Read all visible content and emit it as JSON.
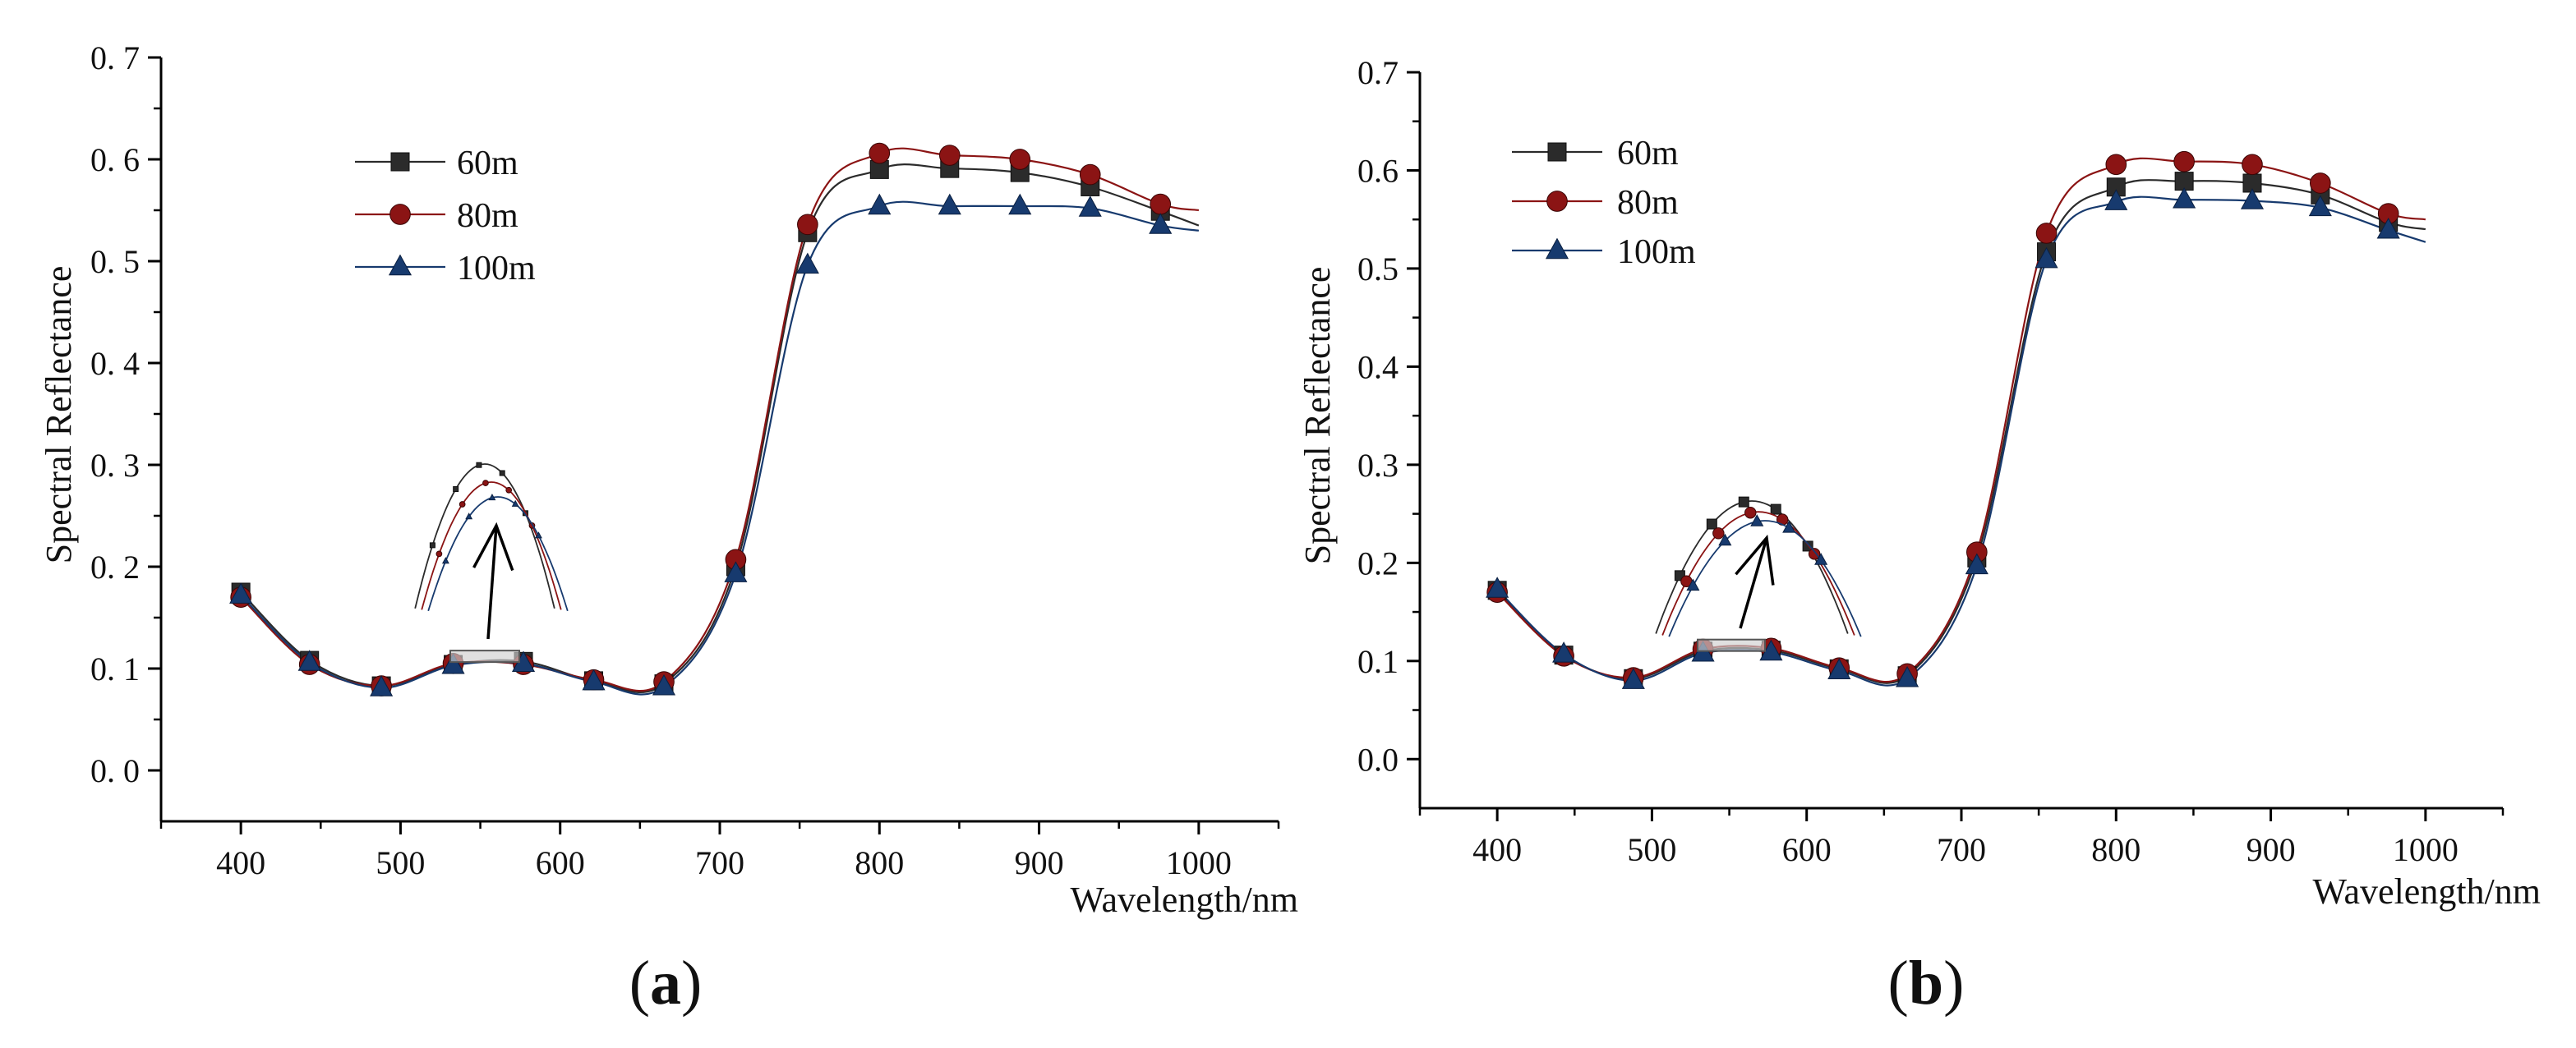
{
  "colors": {
    "series_60m": "#2b2b2b",
    "series_80m": "#8b1414",
    "series_100m": "#173a6e",
    "axis": "#000000",
    "inset_box": "#cfcfcf"
  },
  "chart_data": [
    {
      "type": "line",
      "panel_label": "a",
      "xlabel": "Wavelength/nm",
      "ylabel": "Spectral Reflectance",
      "xlim": [
        350,
        1050
      ],
      "ylim": [
        -0.05,
        0.7
      ],
      "xticks": [
        400,
        500,
        600,
        700,
        800,
        900,
        1000
      ],
      "yticks": [
        0.0,
        0.1,
        0.2,
        0.3,
        0.4,
        0.5,
        0.6,
        0.7
      ],
      "ytick_labels": [
        "0. 0",
        "0. 1",
        "0. 2",
        "0. 3",
        "0. 4",
        "0. 5",
        "0. 6",
        "0. 7"
      ],
      "grid": false,
      "legend_position": "top-left",
      "markers_x": [
        400,
        443,
        488,
        533,
        577,
        621,
        665,
        710,
        755,
        800,
        844,
        888,
        932,
        976
      ],
      "series": [
        {
          "name": "60m",
          "marker": "square",
          "values": [
            0.175,
            0.108,
            0.083,
            0.104,
            0.107,
            0.088,
            0.085,
            0.2,
            0.528,
            0.59,
            0.591,
            0.587,
            0.573,
            0.549
          ],
          "end": 0.535
        },
        {
          "name": "80m",
          "marker": "circle",
          "values": [
            0.17,
            0.104,
            0.083,
            0.105,
            0.104,
            0.089,
            0.087,
            0.207,
            0.536,
            0.606,
            0.604,
            0.6,
            0.585,
            0.556
          ],
          "end": 0.55
        },
        {
          "name": "100m",
          "marker": "triangle",
          "values": [
            0.172,
            0.106,
            0.081,
            0.103,
            0.105,
            0.087,
            0.082,
            0.193,
            0.496,
            0.554,
            0.554,
            0.554,
            0.552,
            0.535
          ],
          "end": 0.53
        }
      ]
    },
    {
      "type": "line",
      "panel_label": "b",
      "xlabel": "Wavelength/nm",
      "ylabel": "Spectral Reflectance",
      "xlim": [
        350,
        1050
      ],
      "ylim": [
        -0.05,
        0.7
      ],
      "xticks": [
        400,
        500,
        600,
        700,
        800,
        900,
        1000
      ],
      "yticks": [
        0.0,
        0.1,
        0.2,
        0.3,
        0.4,
        0.5,
        0.6,
        0.7
      ],
      "ytick_labels": [
        "0.0",
        "0.1",
        "0.2",
        "0.3",
        "0.4",
        "0.5",
        "0.6",
        "0.7"
      ],
      "grid": false,
      "legend_position": "top-left",
      "markers_x": [
        400,
        443,
        488,
        533,
        577,
        621,
        665,
        710,
        755,
        800,
        844,
        888,
        932,
        976
      ],
      "series": [
        {
          "name": "60m",
          "marker": "square",
          "values": [
            0.172,
            0.106,
            0.082,
            0.11,
            0.111,
            0.092,
            0.085,
            0.205,
            0.517,
            0.583,
            0.589,
            0.587,
            0.575,
            0.547
          ],
          "end": 0.54
        },
        {
          "name": "80m",
          "marker": "circle",
          "values": [
            0.17,
            0.105,
            0.083,
            0.112,
            0.113,
            0.093,
            0.087,
            0.211,
            0.536,
            0.606,
            0.609,
            0.606,
            0.587,
            0.556
          ],
          "end": 0.55
        },
        {
          "name": "100m",
          "marker": "triangle",
          "values": [
            0.173,
            0.107,
            0.08,
            0.108,
            0.109,
            0.09,
            0.082,
            0.197,
            0.509,
            0.568,
            0.57,
            0.569,
            0.562,
            0.539
          ],
          "end": 0.527
        }
      ]
    }
  ]
}
